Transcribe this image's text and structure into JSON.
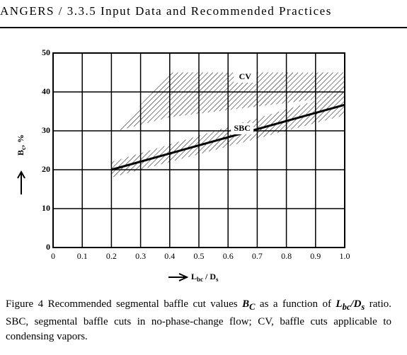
{
  "header": "ANGERS / 3.3.5 Input Data and Recommended Practices",
  "chart_data": {
    "type": "band-line",
    "y_label": [
      "B",
      "c",
      ", %"
    ],
    "x_label": [
      "L",
      "bc",
      " / D",
      "s"
    ],
    "xlim": [
      0,
      1
    ],
    "xticks": [
      0,
      0.1,
      0.2,
      0.3,
      0.4,
      0.5,
      0.6,
      0.7,
      0.8,
      0.9,
      {
        "value": 1,
        "label": "1.0"
      }
    ],
    "ylim": [
      0,
      50
    ],
    "yticks": [
      0,
      10,
      20,
      30,
      40,
      50
    ],
    "grid": true,
    "series": [
      {
        "name": "CV",
        "color": "#000000",
        "x": [
          0.22,
          0.4,
          1.0
        ],
        "upper": [
          30,
          45,
          45
        ],
        "lower": [
          30,
          33.5,
          39
        ]
      },
      {
        "name": "SBC",
        "color": "#000000",
        "x": [
          0.2,
          1.0
        ],
        "values": [
          20,
          36.7
        ],
        "upper": [
          22,
          40
        ],
        "lower": [
          18,
          34
        ]
      }
    ]
  },
  "caption": [
    "Figure 4 Recommended segmental baffle cut values ",
    "B",
    "C",
    " as a function of ",
    "L",
    "bc",
    "/",
    "D",
    "s",
    " ratio. SBC, segmental baffle cuts in no-phase-change flow; CV, baffle cuts applicable to condensing vapors."
  ]
}
